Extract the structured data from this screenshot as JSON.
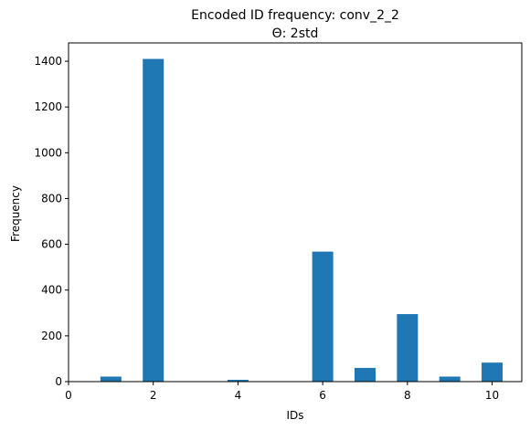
{
  "chart_data": {
    "type": "bar",
    "title": "Encoded ID frequency: conv_2_2",
    "subtitle": "Θ: 2std",
    "xlabel": "IDs",
    "ylabel": "Frequency",
    "x": [
      1,
      2,
      4,
      6,
      7,
      8,
      9,
      10
    ],
    "values": [
      22,
      1410,
      8,
      568,
      60,
      295,
      22,
      83
    ],
    "xlim": [
      0,
      10.7
    ],
    "ylim": [
      0,
      1480
    ],
    "xticks": [
      0,
      2,
      4,
      6,
      8,
      10
    ],
    "yticks": [
      0,
      200,
      400,
      600,
      800,
      1000,
      1200,
      1400
    ],
    "bar_color": "#1f77b4",
    "grid": false
  }
}
